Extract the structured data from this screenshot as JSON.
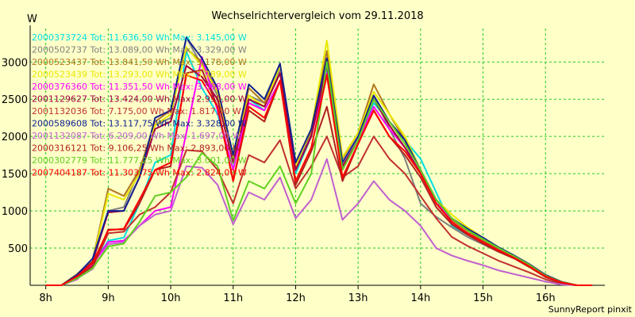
{
  "chart_data": {
    "type": "line",
    "title": "Wechselrichtervergleich vom 29.11.2018",
    "ylabel": "W",
    "credit": "SunnyReport pinxit",
    "ylim": [
      0,
      3450
    ],
    "xlim": [
      7.75,
      16.95
    ],
    "x_ticks": [
      {
        "value": 8,
        "label": "8h"
      },
      {
        "value": 9,
        "label": "9h"
      },
      {
        "value": 10,
        "label": "10h"
      },
      {
        "value": 11,
        "label": "11h"
      },
      {
        "value": 12,
        "label": "12h"
      },
      {
        "value": 13,
        "label": "13h"
      },
      {
        "value": 14,
        "label": "14h"
      },
      {
        "value": 15,
        "label": "15h"
      },
      {
        "value": 16,
        "label": "16h"
      }
    ],
    "y_ticks": [
      500,
      1000,
      1500,
      2000,
      2500,
      3000
    ],
    "x": [
      8.0,
      8.25,
      8.5,
      8.75,
      9.0,
      9.25,
      9.5,
      9.75,
      10.0,
      10.25,
      10.5,
      10.75,
      11.0,
      11.25,
      11.5,
      11.75,
      12.0,
      12.25,
      12.5,
      12.75,
      13.0,
      13.25,
      13.5,
      13.75,
      14.0,
      14.25,
      14.5,
      14.75,
      15.0,
      15.25,
      15.5,
      15.75,
      16.0,
      16.25,
      16.5,
      16.75
    ],
    "grid": true,
    "legend_position": "top-left",
    "series": [
      {
        "name": "2000373724 Tot: 11.636,50 Wh Max: 3.145,00 W",
        "color": "#00e0e0",
        "values": [
          0,
          0,
          80,
          280,
          600,
          640,
          1100,
          1650,
          1750,
          3140,
          2650,
          2300,
          1560,
          2500,
          2350,
          2750,
          1500,
          2000,
          2900,
          1580,
          1950,
          2450,
          2200,
          1950,
          1700,
          1250,
          800,
          680,
          580,
          470,
          380,
          250,
          120,
          40,
          0,
          0
        ]
      },
      {
        "name": "2000502737 Tot: 13.089,00 Wh Max: 3.329,00 W",
        "color": "#808080",
        "values": [
          0,
          0,
          120,
          320,
          1000,
          1050,
          1550,
          2150,
          2250,
          3330,
          2950,
          2550,
          1700,
          2550,
          2450,
          2900,
          1550,
          2050,
          3000,
          1600,
          1950,
          2550,
          2100,
          1700,
          1100,
          920,
          780,
          650,
          550,
          450,
          360,
          250,
          120,
          40,
          0,
          0
        ]
      },
      {
        "name": "2000523437 Tot: 13.841,50 Wh Max: 3.178,00 W",
        "color": "#b07820",
        "values": [
          0,
          0,
          150,
          340,
          1300,
          1200,
          1550,
          2200,
          2350,
          3178,
          3000,
          2600,
          1700,
          2650,
          2450,
          2950,
          1650,
          2050,
          3150,
          1700,
          2050,
          2700,
          2300,
          1950,
          1500,
          1100,
          880,
          730,
          600,
          480,
          380,
          260,
          130,
          40,
          0,
          0
        ]
      },
      {
        "name": "2000523439 Tot: 13.293,00 Wh Max: 3.289,00 W",
        "color": "#e8e800",
        "values": [
          0,
          0,
          130,
          330,
          1230,
          1150,
          1500,
          2150,
          2300,
          3200,
          2950,
          2600,
          1700,
          2550,
          2400,
          2950,
          1600,
          2100,
          3289,
          1720,
          2050,
          2600,
          2300,
          2000,
          1550,
          1150,
          950,
          780,
          640,
          510,
          400,
          280,
          140,
          50,
          0,
          0
        ]
      },
      {
        "name": "2000376360 Tot: 11.351,50 Wh Max: 3.068,00 W",
        "color": "#ff00ff",
        "values": [
          0,
          0,
          80,
          280,
          580,
          600,
          800,
          1000,
          1050,
          2050,
          3068,
          2350,
          1550,
          2450,
          2350,
          2750,
          1550,
          2000,
          2850,
          1550,
          1950,
          2400,
          2100,
          1850,
          1550,
          1150,
          850,
          700,
          580,
          470,
          370,
          250,
          120,
          40,
          0,
          0
        ]
      },
      {
        "name": "2001129627 Tot: 13.424,00 Wh Max: 2.950,00 W",
        "color": "#a00040",
        "values": [
          0,
          0,
          120,
          320,
          980,
          1000,
          1450,
          2100,
          2200,
          2950,
          2800,
          2500,
          1650,
          2500,
          2400,
          2850,
          1550,
          2000,
          2950,
          1600,
          1950,
          2500,
          2150,
          1850,
          1500,
          1100,
          850,
          700,
          580,
          470,
          370,
          250,
          120,
          40,
          0,
          0
        ]
      },
      {
        "name": "2001132036 Tot: 7.175,00 Wh Max: 1.817,00 W",
        "color": "#c03030",
        "values": [
          0,
          0,
          100,
          240,
          700,
          720,
          950,
          1050,
          1250,
          1817,
          1800,
          1550,
          1100,
          1750,
          1650,
          1950,
          1300,
          1600,
          2000,
          1450,
          1600,
          2000,
          1700,
          1500,
          1200,
          900,
          650,
          530,
          430,
          330,
          250,
          170,
          80,
          20,
          0,
          0
        ]
      },
      {
        "name": "2000589608 Tot: 13.117,75 Wh Max: 3.328,00 W",
        "color": "#102090",
        "values": [
          0,
          0,
          140,
          360,
          1000,
          1000,
          1450,
          2250,
          2350,
          3328,
          3050,
          2650,
          1750,
          2700,
          2500,
          2980,
          1650,
          2100,
          3050,
          1650,
          2000,
          2550,
          2200,
          1950,
          1550,
          1150,
          900,
          760,
          640,
          510,
          400,
          280,
          140,
          50,
          0,
          0
        ]
      },
      {
        "name": "2001132087 Tot: 6.209,00 Wh Max: 1.697,00 W",
        "color": "#c060d0",
        "values": [
          0,
          0,
          90,
          220,
          550,
          580,
          800,
          950,
          1000,
          1600,
          1580,
          1350,
          820,
          1250,
          1150,
          1450,
          900,
          1150,
          1697,
          880,
          1100,
          1400,
          1150,
          1000,
          800,
          500,
          400,
          330,
          270,
          200,
          150,
          100,
          50,
          10,
          0,
          0
        ]
      },
      {
        "name": "2000316121 Tot: 9.106,25 Wh Max: 2.893,00 W",
        "color": "#b02020",
        "values": [
          0,
          0,
          110,
          260,
          750,
          750,
          1100,
          1550,
          1600,
          2850,
          2893,
          2400,
          1400,
          2350,
          2200,
          2750,
          1350,
          1800,
          2400,
          1400,
          1900,
          2350,
          2000,
          1750,
          1450,
          1050,
          820,
          680,
          560,
          450,
          360,
          240,
          110,
          35,
          0,
          0
        ]
      },
      {
        "name": "2000302779 Tot: 11.777,25 Wh Max: 3.001,00 W",
        "color": "#60d020",
        "values": [
          0,
          0,
          90,
          230,
          520,
          560,
          850,
          1200,
          1250,
          1450,
          1780,
          1600,
          870,
          1400,
          1300,
          1600,
          1100,
          1500,
          3001,
          1550,
          1950,
          2500,
          2200,
          1900,
          1550,
          1150,
          900,
          740,
          620,
          500,
          390,
          270,
          130,
          45,
          0,
          0
        ]
      },
      {
        "name": "2007404187 Tot: 11.303,75 Wh Max: 2.824,00 W",
        "color": "#ff0000",
        "values": [
          0,
          0,
          120,
          300,
          740,
          760,
          1150,
          1550,
          1650,
          2824,
          2750,
          2400,
          1400,
          2400,
          2250,
          2750,
          1400,
          1850,
          2824,
          1450,
          1900,
          2350,
          2000,
          1800,
          1500,
          1100,
          850,
          700,
          580,
          470,
          370,
          250,
          120,
          40,
          0,
          0
        ]
      }
    ]
  }
}
